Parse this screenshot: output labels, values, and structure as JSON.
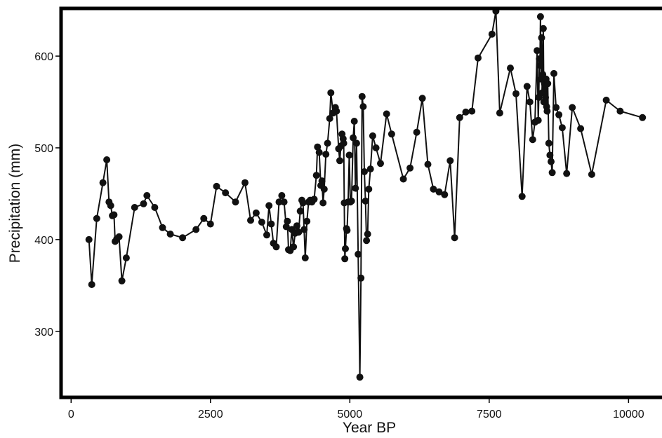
{
  "chart_data": {
    "type": "line",
    "title": "",
    "xlabel": "Year BP",
    "ylabel": "Precipitation (mm)",
    "xlim": [
      -180,
      10600
    ],
    "ylim": [
      228,
      652
    ],
    "xticks": [
      0,
      2500,
      5000,
      7500,
      10000
    ],
    "yticks": [
      300,
      400,
      500,
      600
    ],
    "grid": false,
    "legend": "none",
    "colors": {
      "series": "#111111",
      "frame": "#000000",
      "background": "#ffffff"
    },
    "series": [
      {
        "x": [
          320,
          370,
          460,
          570,
          640,
          680,
          710,
          740,
          770,
          790,
          820,
          860,
          910,
          990,
          1140,
          1300,
          1360,
          1500,
          1640,
          1780,
          2000,
          2240,
          2380,
          2500,
          2610,
          2770,
          2950,
          3120,
          3220,
          3320,
          3420,
          3510,
          3550,
          3590,
          3630,
          3680,
          3730,
          3780,
          3820,
          3860,
          3880,
          3900,
          3930,
          3960,
          3990,
          4020,
          4050,
          4080,
          4110,
          4140,
          4160,
          4180,
          4200,
          4230,
          4260,
          4290,
          4320,
          4360,
          4400,
          4420,
          4450,
          4480,
          4500,
          4520,
          4540,
          4570,
          4600,
          4640,
          4660,
          4700,
          4740,
          4760,
          4800,
          4820,
          4840,
          4860,
          4880,
          4890,
          4900,
          4910,
          4920,
          4940,
          4950,
          4970,
          4990,
          5010,
          5030,
          5060,
          5080,
          5100,
          5120,
          5150,
          5180,
          5200,
          5220,
          5240,
          5260,
          5280,
          5300,
          5320,
          5340,
          5370,
          5410,
          5470,
          5550,
          5660,
          5750,
          5960,
          6080,
          6200,
          6300,
          6400,
          6500,
          6600,
          6700,
          6800,
          6880,
          6970,
          7080,
          7190,
          7300,
          7550,
          7620,
          7690,
          7880,
          7980,
          8090,
          8180,
          8230,
          8280,
          8320,
          8360,
          8380,
          8390,
          8400,
          8410,
          8420,
          8430,
          8440,
          8450,
          8460,
          8470,
          8480,
          8490,
          8500,
          8510,
          8520,
          8530,
          8540,
          8550,
          8570,
          8590,
          8610,
          8630,
          8660,
          8700,
          8750,
          8810,
          8890,
          8990,
          9140,
          9340,
          9600,
          9850,
          10250
        ],
        "y": [
          400,
          351,
          423,
          462,
          487,
          441,
          437,
          426,
          427,
          398,
          401,
          403,
          355,
          380,
          435,
          439,
          448,
          435,
          413,
          406,
          402,
          411,
          423,
          417,
          458,
          451,
          441,
          462,
          421,
          429,
          419,
          405,
          437,
          417,
          396,
          392,
          441,
          448,
          441,
          414,
          420,
          389,
          388,
          411,
          392,
          407,
          415,
          408,
          431,
          443,
          440,
          411,
          380,
          420,
          441,
          443,
          441,
          444,
          470,
          501,
          495,
          459,
          464,
          440,
          455,
          493,
          505,
          532,
          560,
          538,
          544,
          540,
          499,
          486,
          502,
          515,
          510,
          505,
          440,
          379,
          390,
          412,
          410,
          441,
          492,
          441,
          442,
          511,
          529,
          456,
          505,
          384,
          250,
          358,
          556,
          545,
          474,
          442,
          399,
          406,
          455,
          477,
          513,
          500,
          483,
          537,
          515,
          466,
          478,
          517,
          554,
          482,
          455,
          452,
          449,
          486,
          402,
          533,
          539,
          540,
          598,
          624,
          649,
          538,
          587,
          559,
          447,
          567,
          550,
          509,
          528,
          606,
          530,
          555,
          597,
          590,
          643,
          575,
          620,
          560,
          580,
          630,
          550,
          570,
          565,
          555,
          575,
          545,
          540,
          570,
          505,
          492,
          485,
          473,
          581,
          544,
          536,
          522,
          472,
          544,
          521,
          471,
          552,
          540,
          533
        ]
      }
    ]
  }
}
